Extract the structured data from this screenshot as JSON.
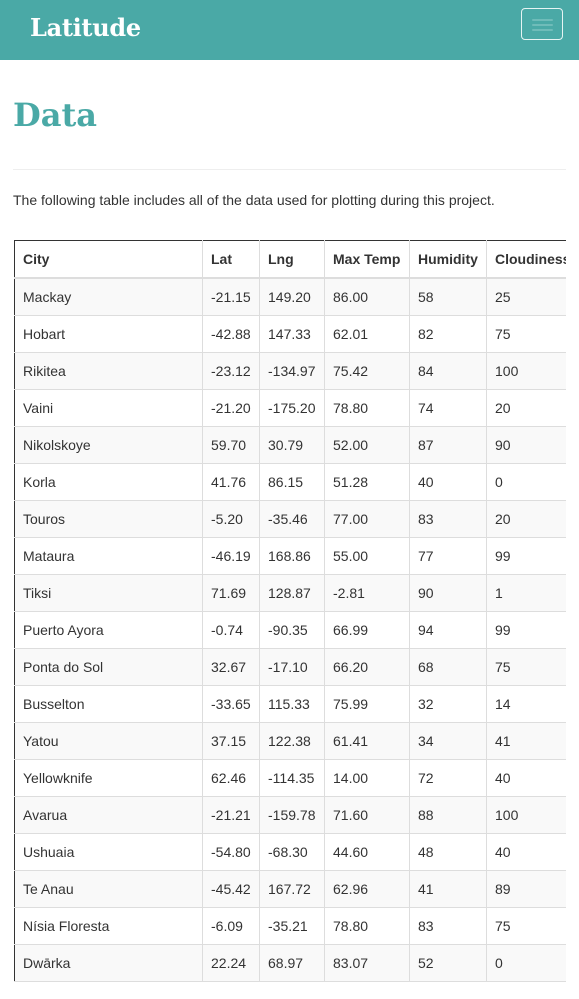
{
  "navbar": {
    "brand": "Latitude",
    "toggle_icon": "hamburger-menu-icon"
  },
  "page": {
    "title": "Data",
    "intro": "The following table includes all of the data used for plotting during this project."
  },
  "table": {
    "headers": [
      "City",
      "Lat",
      "Lng",
      "Max Temp",
      "Humidity",
      "Cloudiness"
    ],
    "rows": [
      [
        "Mackay",
        "-21.15",
        "149.20",
        "86.00",
        "58",
        "25"
      ],
      [
        "Hobart",
        "-42.88",
        "147.33",
        "62.01",
        "82",
        "75"
      ],
      [
        "Rikitea",
        "-23.12",
        "-134.97",
        "75.42",
        "84",
        "100"
      ],
      [
        "Vaini",
        "-21.20",
        "-175.20",
        "78.80",
        "74",
        "20"
      ],
      [
        "Nikolskoye",
        "59.70",
        "30.79",
        "52.00",
        "87",
        "90"
      ],
      [
        "Korla",
        "41.76",
        "86.15",
        "51.28",
        "40",
        "0"
      ],
      [
        "Touros",
        "-5.20",
        "-35.46",
        "77.00",
        "83",
        "20"
      ],
      [
        "Mataura",
        "-46.19",
        "168.86",
        "55.00",
        "77",
        "99"
      ],
      [
        "Tiksi",
        "71.69",
        "128.87",
        "-2.81",
        "90",
        "1"
      ],
      [
        "Puerto Ayora",
        "-0.74",
        "-90.35",
        "66.99",
        "94",
        "99"
      ],
      [
        "Ponta do Sol",
        "32.67",
        "-17.10",
        "66.20",
        "68",
        "75"
      ],
      [
        "Busselton",
        "-33.65",
        "115.33",
        "75.99",
        "32",
        "14"
      ],
      [
        "Yatou",
        "37.15",
        "122.38",
        "61.41",
        "34",
        "41"
      ],
      [
        "Yellowknife",
        "62.46",
        "-114.35",
        "14.00",
        "72",
        "40"
      ],
      [
        "Avarua",
        "-21.21",
        "-159.78",
        "71.60",
        "88",
        "100"
      ],
      [
        "Ushuaia",
        "-54.80",
        "-68.30",
        "44.60",
        "48",
        "40"
      ],
      [
        "Te Anau",
        "-45.42",
        "167.72",
        "62.96",
        "41",
        "89"
      ],
      [
        "Nísia Floresta",
        "-6.09",
        "-35.21",
        "78.80",
        "83",
        "75"
      ],
      [
        "Dwārka",
        "22.24",
        "68.97",
        "83.07",
        "52",
        "0"
      ]
    ]
  }
}
